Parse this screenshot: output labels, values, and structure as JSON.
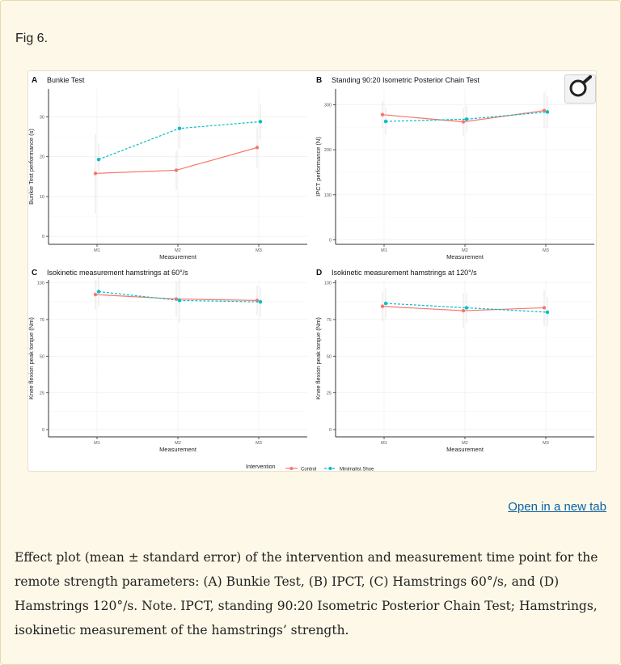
{
  "fig_label": "Fig 6.",
  "open_link": "Open in a new tab",
  "caption": "Effect plot (mean ± standard error) of the intervention and measurement time point for the remote strength parameters: (A) Bunkie Test, (B) IPCT, (C) Hamstrings 60°/s, and (D) Hamstrings 120°/s. Note. IPCT, standing 90:20 Isometric Posterior Chain Test; Hamstrings, isokinetic measurement of the hamstrings’ strength.",
  "legend": {
    "title": "Intervention",
    "control": "Control",
    "minimalist": "Minimalist Shoe"
  },
  "colors": {
    "control": "#f8766d",
    "minimalist": "#00bfc4"
  },
  "zoom_icon": "magnifier-icon",
  "chart_data": [
    {
      "panel": "A",
      "type": "line",
      "title": "Bunkie Test",
      "xlabel": "Measurement",
      "ylabel": "Bunkie Test performance (s)",
      "categories": [
        "M1",
        "M2",
        "M3"
      ],
      "ylim": [
        -2,
        37
      ],
      "yticks": [
        0,
        10,
        20,
        30
      ],
      "series": [
        {
          "name": "Control",
          "values": [
            15.8,
            16.6,
            22.3
          ],
          "errors": [
            10,
            5,
            5
          ]
        },
        {
          "name": "Minimalist Shoe",
          "values": [
            19.3,
            27.1,
            28.8
          ],
          "errors": [
            4,
            5,
            4.5
          ]
        }
      ]
    },
    {
      "panel": "B",
      "type": "line",
      "title": "Standing 90:20 Isometric Posterior Chain Test",
      "xlabel": "Measurement",
      "ylabel": "IPCT performance (N)",
      "categories": [
        "M1",
        "M2",
        "M3"
      ],
      "ylim": [
        -10,
        335
      ],
      "yticks": [
        0,
        100,
        200,
        300
      ],
      "series": [
        {
          "name": "Control",
          "values": [
            278,
            262,
            287
          ],
          "errors": [
            30,
            30,
            40
          ]
        },
        {
          "name": "Minimalist Shoe",
          "values": [
            263,
            268,
            284
          ],
          "errors": [
            30,
            30,
            35
          ]
        }
      ]
    },
    {
      "panel": "C",
      "type": "line",
      "title": "Isokinetic measurement hamstrings at 60°/s",
      "xlabel": "Measurement",
      "ylabel": "Knee flexion peak torque (Nm)",
      "categories": [
        "M1",
        "M2",
        "M3"
      ],
      "ylim": [
        -5,
        102
      ],
      "yticks": [
        0,
        25,
        50,
        75,
        100
      ],
      "series": [
        {
          "name": "Control",
          "values": [
            92,
            89,
            88
          ],
          "errors": [
            10,
            12,
            10
          ]
        },
        {
          "name": "Minimalist Shoe",
          "values": [
            94,
            88,
            87
          ],
          "errors": [
            10,
            15,
            10
          ]
        }
      ]
    },
    {
      "panel": "D",
      "type": "line",
      "title": "Isokinetic measurement hamstrings at 120°/s",
      "xlabel": "Measurement",
      "ylabel": "Knee flexion peak torque (Nm)",
      "categories": [
        "M1",
        "M2",
        "M3"
      ],
      "ylim": [
        -5,
        102
      ],
      "yticks": [
        0,
        25,
        50,
        75,
        100
      ],
      "series": [
        {
          "name": "Control",
          "values": [
            84,
            81,
            83
          ],
          "errors": [
            10,
            12,
            12
          ]
        },
        {
          "name": "Minimalist Shoe",
          "values": [
            86,
            83,
            80
          ],
          "errors": [
            10,
            10,
            10
          ]
        }
      ]
    }
  ]
}
